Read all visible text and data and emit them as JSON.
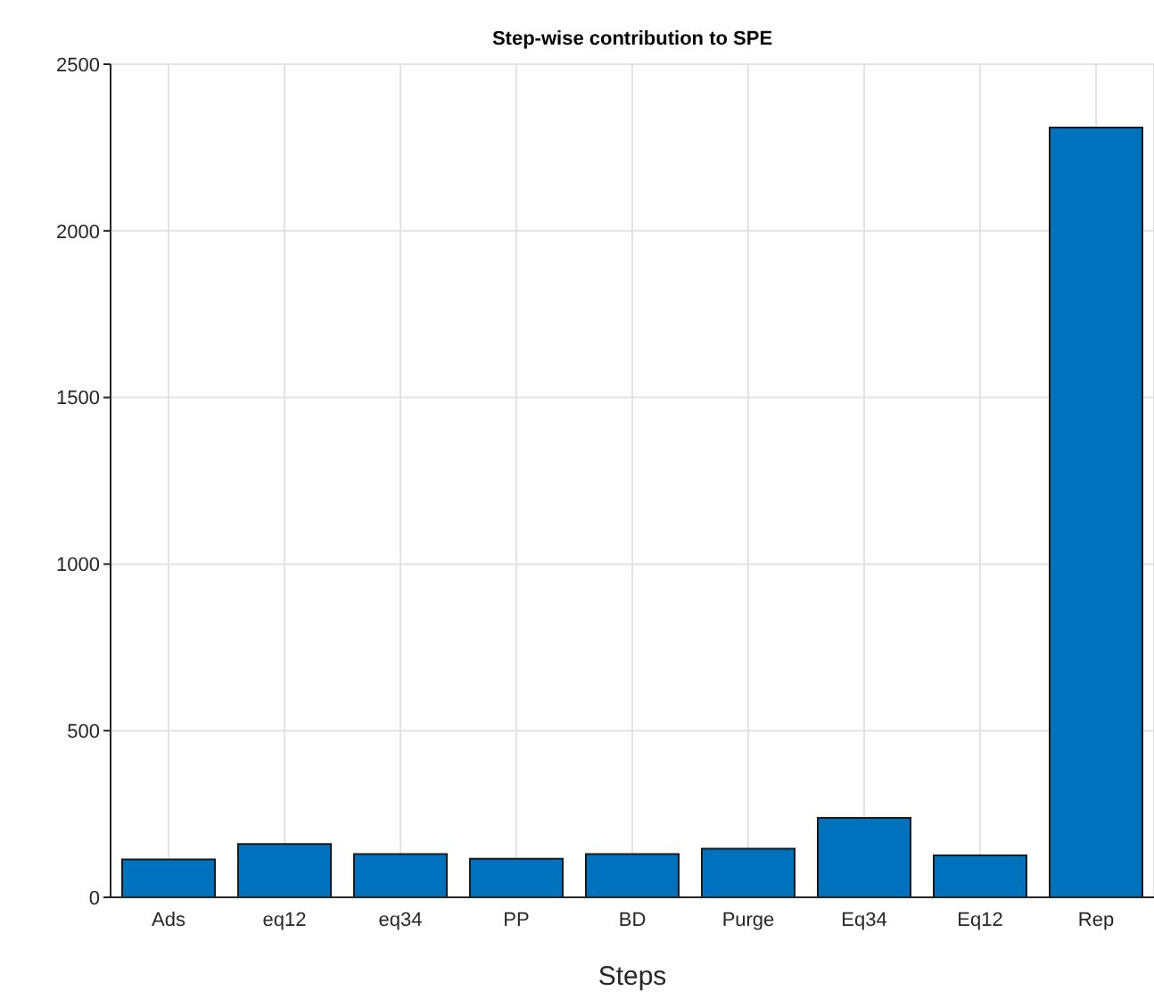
{
  "chart_data": {
    "type": "bar",
    "title": "Step-wise contribution to SPE",
    "xlabel": "Steps",
    "categories": [
      "Ads",
      "eq12",
      "eq34",
      "PP",
      "BD",
      "Purge",
      "Eq34",
      "Eq12",
      "Rep"
    ],
    "values": [
      114,
      160,
      130,
      116,
      130,
      146,
      238,
      126,
      2310
    ],
    "color": "#0072bd",
    "ylim": [
      0,
      2500
    ],
    "yticks": [
      0,
      500,
      1000,
      1500,
      2000,
      2500
    ],
    "grid": true
  }
}
